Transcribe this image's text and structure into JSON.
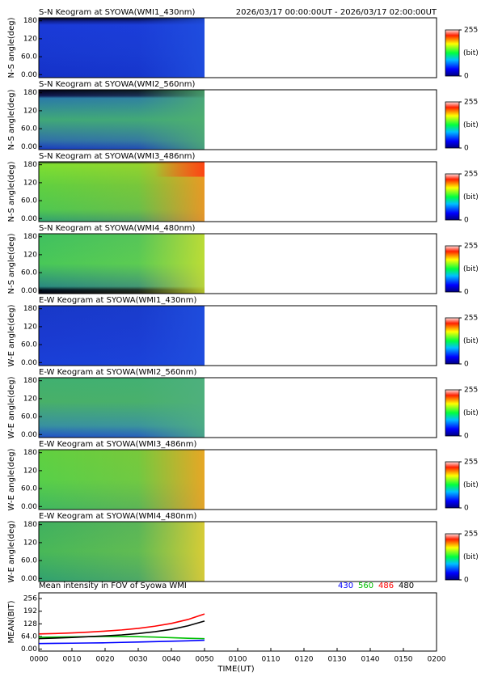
{
  "chart_data": [
    {
      "type": "keogram",
      "title": "S-N Keogram at SYOWA(WMI1_430nm)",
      "subtitle": "2026/03/17 00:00:00UT - 2026/03/17 02:00:00UT",
      "ylabel": "N-S angle(deg)",
      "ylim": [
        -10,
        190
      ],
      "yticks": [
        {
          "value": 0,
          "label": "0.00"
        },
        {
          "value": 60,
          "label": "60.0"
        },
        120,
        180
      ],
      "colorbar": {
        "label": "(bit)",
        "lim": [
          0,
          255
        ],
        "ticks": [
          0,
          255
        ]
      }
    },
    {
      "type": "keogram",
      "title": "S-N Keogram at SYOWA(WMI2_560nm)",
      "ylabel": "N-S angle(deg)",
      "ylim": [
        -10,
        190
      ],
      "yticks": [
        {
          "value": 0,
          "label": "0.00"
        },
        {
          "value": 60,
          "label": "60.0"
        },
        120,
        180
      ],
      "colorbar": {
        "label": "(bit)",
        "lim": [
          0,
          255
        ],
        "ticks": [
          0,
          255
        ]
      }
    },
    {
      "type": "keogram",
      "title": "S-N Keogram at SYOWA(WMI3_486nm)",
      "ylabel": "N-S angle(deg)",
      "ylim": [
        -10,
        190
      ],
      "yticks": [
        {
          "value": 0,
          "label": "0.00"
        },
        {
          "value": 60,
          "label": "60.0"
        },
        120,
        180
      ],
      "colorbar": {
        "label": "(bit)",
        "lim": [
          0,
          255
        ],
        "ticks": [
          0,
          255
        ]
      }
    },
    {
      "type": "keogram",
      "title": "S-N Keogram at SYOWA(WMI4_480nm)",
      "ylabel": "N-S angle(deg)",
      "ylim": [
        -10,
        190
      ],
      "yticks": [
        {
          "value": 0,
          "label": "0.00"
        },
        {
          "value": 60,
          "label": "60.0"
        },
        120,
        180
      ],
      "colorbar": {
        "label": "(bit)",
        "lim": [
          0,
          255
        ],
        "ticks": [
          0,
          255
        ]
      }
    },
    {
      "type": "keogram",
      "title": "E-W Keogram at SYOWA(WMI1_430nm)",
      "ylabel": "W-E angle(deg)",
      "ylim": [
        -10,
        190
      ],
      "yticks": [
        {
          "value": 0,
          "label": "0.00"
        },
        {
          "value": 60,
          "label": "60.0"
        },
        120,
        180
      ],
      "colorbar": {
        "label": "(bit)",
        "lim": [
          0,
          255
        ],
        "ticks": [
          0,
          255
        ]
      }
    },
    {
      "type": "keogram",
      "title": "E-W Keogram at SYOWA(WMI2_560nm)",
      "ylabel": "W-E angle(deg)",
      "ylim": [
        -10,
        190
      ],
      "yticks": [
        {
          "value": 0,
          "label": "0.00"
        },
        {
          "value": 60,
          "label": "60.0"
        },
        120,
        180
      ],
      "colorbar": {
        "label": "(bit)",
        "lim": [
          0,
          255
        ],
        "ticks": [
          0,
          255
        ]
      }
    },
    {
      "type": "keogram",
      "title": "E-W Keogram at SYOWA(WMI3_486nm)",
      "ylabel": "W-E angle(deg)",
      "ylim": [
        -10,
        190
      ],
      "yticks": [
        {
          "value": 0,
          "label": "0.00"
        },
        {
          "value": 60,
          "label": "60.0"
        },
        120,
        180
      ],
      "colorbar": {
        "label": "(bit)",
        "lim": [
          0,
          255
        ],
        "ticks": [
          0,
          255
        ]
      }
    },
    {
      "type": "keogram",
      "title": "E-W Keogram at SYOWA(WMI4_480nm)",
      "ylabel": "W-E angle(deg)",
      "ylim": [
        -10,
        190
      ],
      "yticks": [
        {
          "value": 0,
          "label": "0.00"
        },
        {
          "value": 60,
          "label": "60.0"
        },
        120,
        180
      ],
      "colorbar": {
        "label": "(bit)",
        "lim": [
          0,
          255
        ],
        "ticks": [
          0,
          255
        ]
      }
    },
    {
      "type": "line",
      "title": "Mean intensity in FOV of Syowa WMI",
      "ylabel": "MEAN(BIT)",
      "xlabel": "TIME(UT)",
      "x": [
        0,
        5,
        10,
        15,
        20,
        25,
        30,
        35,
        40,
        45,
        50
      ],
      "xlim": [
        0,
        120
      ],
      "xticks": [
        {
          "value": 0,
          "label": "0000"
        },
        {
          "value": 10,
          "label": "0010"
        },
        {
          "value": 20,
          "label": "0020"
        },
        {
          "value": 30,
          "label": "0030"
        },
        {
          "value": 40,
          "label": "0040"
        },
        {
          "value": 50,
          "label": "0050"
        },
        {
          "value": 60,
          "label": "0100"
        },
        {
          "value": 70,
          "label": "0110"
        },
        {
          "value": 80,
          "label": "0120"
        },
        {
          "value": 90,
          "label": "0130"
        },
        {
          "value": 100,
          "label": "0140"
        },
        {
          "value": 110,
          "label": "0150"
        },
        {
          "value": 120,
          "label": "0200"
        }
      ],
      "ylim": [
        -10,
        285
      ],
      "yticks": [
        {
          "value": 0,
          "label": "0.00"
        },
        {
          "value": 64,
          "label": "64.0"
        },
        128,
        192,
        256
      ],
      "series": [
        {
          "name": "430",
          "color": "#0000ff",
          "values": [
            28,
            29,
            30,
            31,
            32,
            34,
            36,
            38,
            40,
            42,
            45
          ]
        },
        {
          "name": "560",
          "color": "#00c000",
          "values": [
            60,
            61,
            62,
            63,
            64,
            64,
            63,
            61,
            58,
            55,
            53
          ]
        },
        {
          "name": "486",
          "color": "#ff0000",
          "values": [
            77,
            79,
            82,
            86,
            91,
            97,
            105,
            116,
            130,
            150,
            178
          ]
        },
        {
          "name": "480",
          "color": "#000000",
          "values": [
            53,
            56,
            59,
            63,
            67,
            72,
            79,
            88,
            100,
            118,
            142
          ]
        }
      ]
    }
  ]
}
